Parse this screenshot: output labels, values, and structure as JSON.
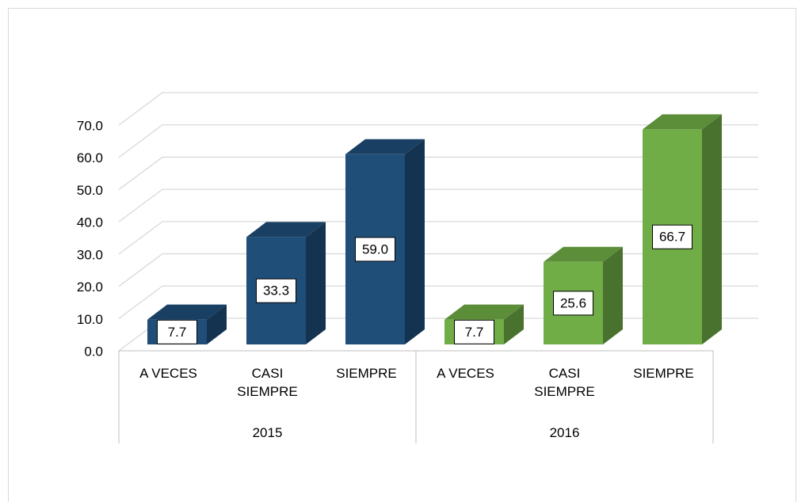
{
  "chart_data": {
    "type": "bar3d",
    "categories": [
      "A VECES",
      "CASI SIEMPRE",
      "SIEMPRE"
    ],
    "series": [
      {
        "name": "2015",
        "color": "#1f4e79",
        "values": [
          7.7,
          33.3,
          59.0
        ],
        "value_labels": [
          "7.7",
          "33.3",
          "59.0"
        ]
      },
      {
        "name": "2016",
        "color": "#70ad47",
        "values": [
          7.7,
          25.6,
          66.7
        ],
        "value_labels": [
          "7.7",
          "25.6",
          "66.7"
        ]
      }
    ],
    "ylim": [
      0,
      70
    ],
    "yticks": [
      {
        "value": 0,
        "label": "0.0"
      },
      {
        "value": 10,
        "label": "10.0"
      },
      {
        "value": 20,
        "label": "20.0"
      },
      {
        "value": 30,
        "label": "30.0"
      },
      {
        "value": 40,
        "label": "40.0"
      },
      {
        "value": 50,
        "label": "50.0"
      },
      {
        "value": 60,
        "label": "60.0"
      },
      {
        "value": 70,
        "label": "70.0"
      }
    ],
    "grid": true
  }
}
